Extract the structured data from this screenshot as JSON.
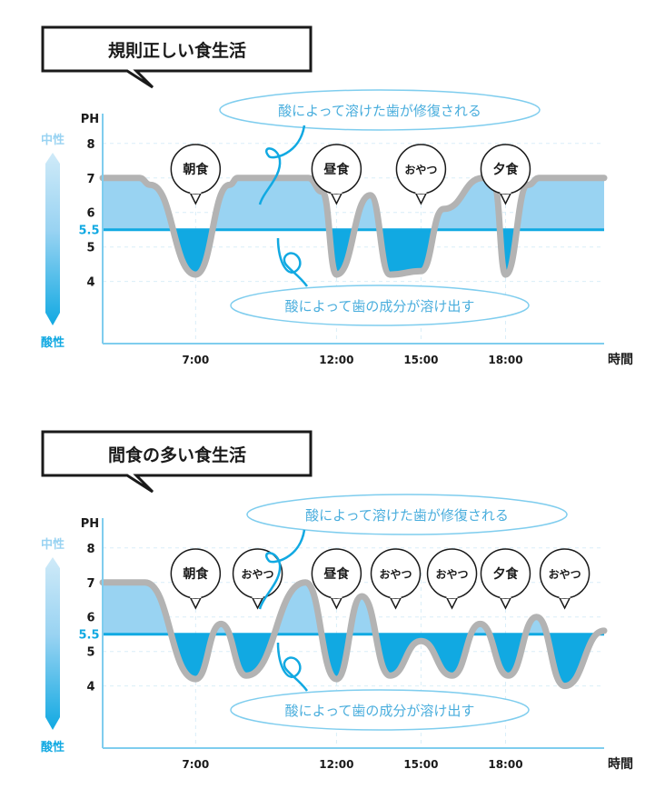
{
  "colors": {
    "acid_blue": "#11a9e2",
    "light_fill": "#99d3f2",
    "pale_fill": "#cfeaf8",
    "curve_gray": "#b3b3b3",
    "axis_blue": "#7fcdee",
    "dark_text": "#1a1a1a",
    "bubble_outline": "#7fcdee"
  },
  "common": {
    "neutral_label": "中性",
    "acid_label": "酸性",
    "ph_label": "PH",
    "x_axis_label": "時間",
    "threshold_label": "5.5",
    "repair_caption": "酸によって溶けた歯が修復される",
    "dissolve_caption": "酸によって歯の成分が溶け出す",
    "ytick_labels": [
      "8",
      "7",
      "6",
      "5",
      "4"
    ],
    "xtick_labels": [
      "7:00",
      "12:00",
      "15:00",
      "18:00"
    ]
  },
  "chart_data": [
    {
      "type": "area",
      "title": "規則正しい食生活",
      "xlabel": "時間",
      "ylabel": "PH",
      "threshold": 5.5,
      "ylim": [
        2.2,
        8.6
      ],
      "xlim": [
        3.7,
        21.5
      ],
      "xticks": [
        7,
        12,
        15,
        18
      ],
      "yticks": [
        8,
        7,
        6,
        5,
        4
      ],
      "grid": true,
      "meals": [
        {
          "label": "朝食",
          "x": 7
        },
        {
          "label": "昼食",
          "x": 12
        },
        {
          "label": "おやつ",
          "x": 15
        },
        {
          "label": "夕食",
          "x": 18
        }
      ],
      "series": [
        {
          "x": [
            3.7,
            5.0,
            5.4,
            7.0,
            8.2,
            8.5,
            11.0,
            11.5,
            12.0,
            13.2,
            13.9,
            15.0,
            15.8,
            17.2,
            17.6,
            18.0,
            18.8,
            19.2,
            21.5
          ],
          "values": [
            7.0,
            7.0,
            6.8,
            4.2,
            6.8,
            7.0,
            7.0,
            6.6,
            4.2,
            6.5,
            4.2,
            4.3,
            6.1,
            7.0,
            6.8,
            4.2,
            6.8,
            7.0,
            7.0
          ]
        }
      ]
    },
    {
      "type": "area",
      "title": "間食の多い食生活",
      "xlabel": "時間",
      "ylabel": "PH",
      "threshold": 5.5,
      "ylim": [
        2.2,
        8.6
      ],
      "xlim": [
        3.7,
        21.5
      ],
      "xticks": [
        7,
        12,
        15,
        18
      ],
      "yticks": [
        8,
        7,
        6,
        5,
        4
      ],
      "grid": true,
      "meals": [
        {
          "label": "朝食",
          "x": 7
        },
        {
          "label": "おやつ",
          "x": 9.2
        },
        {
          "label": "昼食",
          "x": 12
        },
        {
          "label": "おやつ",
          "x": 14.1
        },
        {
          "label": "おやつ",
          "x": 16.1
        },
        {
          "label": "夕食",
          "x": 18
        },
        {
          "label": "おやつ",
          "x": 20.1
        }
      ],
      "series": [
        {
          "x": [
            3.7,
            5.2,
            7.0,
            7.9,
            8.8,
            10.9,
            12.0,
            12.9,
            13.9,
            15.0,
            16.1,
            17.1,
            18.1,
            19.1,
            20.1,
            21.5
          ],
          "values": [
            7.0,
            7.0,
            4.2,
            5.8,
            4.3,
            7.0,
            4.2,
            6.6,
            4.3,
            5.3,
            4.3,
            5.8,
            4.3,
            6.0,
            4.0,
            5.6
          ]
        }
      ]
    }
  ]
}
